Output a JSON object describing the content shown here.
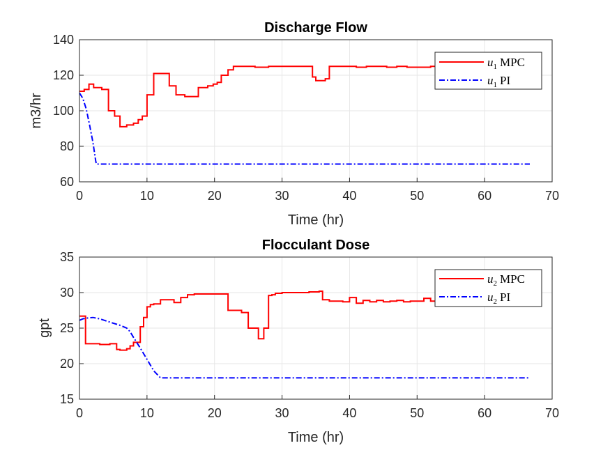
{
  "chart_data": [
    {
      "type": "line",
      "title": "Discharge Flow",
      "xlabel": "Time (hr)",
      "ylabel": "m3/hr",
      "xlim": [
        0,
        70
      ],
      "ylim": [
        60,
        140
      ],
      "xticks": [
        "0",
        "10",
        "20",
        "30",
        "40",
        "50",
        "60",
        "70"
      ],
      "yticks": [
        "60",
        "80",
        "100",
        "120",
        "140"
      ],
      "grid": true,
      "legend_position": "top-right",
      "series": [
        {
          "name": "u1 MPC",
          "legend_var": "u",
          "legend_sub": "1",
          "legend_text": "MPC",
          "color": "#ff0000",
          "style": "solid",
          "step": true,
          "x": [
            0,
            0.7,
            1.4,
            2.1,
            3.3,
            4.3,
            5.2,
            6.0,
            7.0,
            8.0,
            8.7,
            9.3,
            10.0,
            11.0,
            13.3,
            14.3,
            15.6,
            17.6,
            19.0,
            19.8,
            20.4,
            21.0,
            22.0,
            22.8,
            24.0,
            26.0,
            28.0,
            30.0,
            32.0,
            34.0,
            34.5,
            35.0,
            35.6,
            36.4,
            37.0,
            38.0,
            39.5,
            41.0,
            42.5,
            44.0,
            45.5,
            47.0,
            48.5,
            50.0,
            51.0,
            52.0,
            53.0
          ],
          "y": [
            111,
            112,
            115,
            113,
            112,
            100,
            97,
            91,
            92,
            93,
            95,
            97,
            109,
            121,
            114,
            109,
            108,
            113,
            114,
            115,
            116,
            120,
            123,
            125,
            125,
            124.5,
            125,
            125,
            125,
            125,
            119,
            117,
            117,
            118,
            125,
            125,
            125,
            124.5,
            125,
            125,
            124.5,
            125,
            124.5,
            124.5,
            124.5,
            125,
            124.5
          ]
        },
        {
          "name": "u1 PI",
          "legend_var": "u",
          "legend_sub": "1",
          "legend_text": "PI",
          "color": "#0000ff",
          "style": "dash-dot",
          "step": false,
          "x": [
            0,
            0.5,
            1.0,
            1.5,
            2.0,
            2.4,
            2.5,
            10,
            20,
            30,
            40,
            50,
            60,
            66.7
          ],
          "y": [
            110,
            107,
            101,
            92,
            82,
            72,
            70,
            70,
            70,
            70,
            70,
            70,
            70,
            70
          ]
        }
      ]
    },
    {
      "type": "line",
      "title": "Flocculant Dose",
      "xlabel": "Time (hr)",
      "ylabel": "gpt",
      "xlim": [
        0,
        70
      ],
      "ylim": [
        15,
        35
      ],
      "xticks": [
        "0",
        "10",
        "20",
        "30",
        "40",
        "50",
        "60",
        "70"
      ],
      "yticks": [
        "15",
        "20",
        "25",
        "30",
        "35"
      ],
      "grid": true,
      "legend_position": "top-right",
      "series": [
        {
          "name": "u2 MPC",
          "legend_var": "u",
          "legend_sub": "2",
          "legend_text": "MPC",
          "color": "#ff0000",
          "style": "solid",
          "step": true,
          "x": [
            0,
            0.9,
            3.0,
            4.5,
            5.5,
            6.0,
            7.0,
            7.5,
            8.0,
            9.0,
            9.5,
            10.0,
            10.5,
            11.0,
            12.0,
            14.0,
            15.0,
            16.0,
            17.0,
            18.0,
            20.0,
            21.0,
            22.0,
            24.0,
            25.0,
            26.5,
            27.3,
            28.0,
            28.5,
            29.0,
            30.0,
            32.0,
            34.0,
            35.5,
            36.0,
            37.0,
            39.0,
            40.0,
            41.0,
            42.0,
            43.0,
            44.0,
            45.0,
            46.0,
            47.0,
            48.0,
            49.0,
            50.0,
            51.0,
            52.0,
            53.0
          ],
          "y": [
            26.7,
            22.8,
            22.7,
            22.8,
            22.0,
            21.9,
            22.1,
            22.5,
            23.0,
            25.2,
            26.5,
            28.0,
            28.3,
            28.4,
            29.0,
            28.6,
            29.3,
            29.7,
            29.8,
            29.8,
            29.8,
            29.8,
            27.5,
            27.2,
            25.0,
            23.5,
            25.0,
            29.6,
            29.7,
            29.9,
            30.0,
            30.0,
            30.1,
            30.2,
            29.0,
            28.8,
            28.7,
            29.3,
            28.5,
            28.9,
            28.7,
            28.9,
            28.7,
            28.8,
            28.9,
            28.7,
            28.8,
            28.8,
            29.2,
            28.8,
            28.7
          ]
        },
        {
          "name": "u2 PI",
          "legend_var": "u",
          "legend_sub": "2",
          "legend_text": "PI",
          "color": "#0000ff",
          "style": "dash-dot",
          "step": false,
          "x": [
            0,
            0.5,
            1.0,
            2.0,
            3.0,
            4.0,
            5.0,
            6.0,
            7.0,
            7.5,
            8.0,
            9.0,
            10.0,
            11.0,
            12.0,
            20,
            30,
            40,
            50,
            60,
            66.7
          ],
          "y": [
            26.1,
            26.3,
            26.4,
            26.5,
            26.3,
            26.0,
            25.7,
            25.4,
            25.0,
            24.5,
            23.7,
            22.2,
            20.6,
            19.0,
            18.0,
            18.0,
            18.0,
            18.0,
            18.0,
            18.0,
            18.0
          ]
        }
      ]
    }
  ]
}
